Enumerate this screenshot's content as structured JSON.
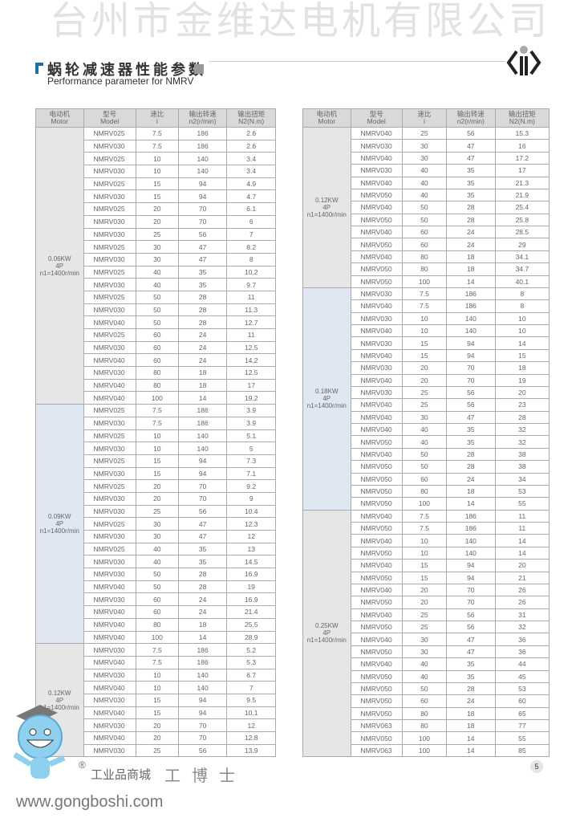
{
  "header": {
    "title_cn": "蜗轮减速器性能参数",
    "title_en": "Performance parameter for NMRV"
  },
  "columns": [
    {
      "cn": "电动机",
      "en": "Motor"
    },
    {
      "cn": "型号",
      "en": "Model"
    },
    {
      "cn": "速比",
      "en": "i"
    },
    {
      "cn": "输出转速",
      "en": "n2(r/min)"
    },
    {
      "cn": "输出扭矩",
      "en": "N2(N.m)"
    }
  ],
  "colors": {
    "gray_group": "#e6e6e6",
    "blue_group": "#dfe8f2",
    "accent": "#1d6fa5"
  },
  "tables": [
    {
      "groups": [
        {
          "motor": [
            "0.06KW",
            "4P",
            "n1=1400r/min"
          ],
          "shade": "gray",
          "rows": [
            [
              "NMRV025",
              "7.5",
              "186",
              "2.6"
            ],
            [
              "NMRV030",
              "7.5",
              "186",
              "2.6"
            ],
            [
              "NMRV025",
              "10",
              "140",
              "3.4"
            ],
            [
              "NMRV030",
              "10",
              "140",
              "3.4"
            ],
            [
              "NMRV025",
              "15",
              "94",
              "4.9"
            ],
            [
              "NMRV030",
              "15",
              "94",
              "4.7"
            ],
            [
              "NMRV025",
              "20",
              "70",
              "6.1"
            ],
            [
              "NMRV030",
              "20",
              "70",
              "6"
            ],
            [
              "NMRV030",
              "25",
              "56",
              "7"
            ],
            [
              "NMRV025",
              "30",
              "47",
              "8.2"
            ],
            [
              "NMRV030",
              "30",
              "47",
              "8"
            ],
            [
              "NMRV025",
              "40",
              "35",
              "10.2"
            ],
            [
              "NMRV030",
              "40",
              "35",
              "9.7"
            ],
            [
              "NMRV025",
              "50",
              "28",
              "11"
            ],
            [
              "NMRV030",
              "50",
              "28",
              "11.3"
            ],
            [
              "NMRV040",
              "50",
              "28",
              "12.7"
            ],
            [
              "NMRV025",
              "60",
              "24",
              "11"
            ],
            [
              "NMRV030",
              "60",
              "24",
              "12.5"
            ],
            [
              "NMRV040",
              "60",
              "24",
              "14.2"
            ],
            [
              "NMRV030",
              "80",
              "18",
              "12.5"
            ],
            [
              "NMRV040",
              "80",
              "18",
              "17"
            ],
            [
              "NMRV040",
              "100",
              "14",
              "19.2"
            ]
          ]
        },
        {
          "motor": [
            "0.09KW",
            "4P",
            "n1=1400r/min"
          ],
          "shade": "blue",
          "rows": [
            [
              "NMRV025",
              "7.5",
              "186",
              "3.9"
            ],
            [
              "NMRV030",
              "7.5",
              "186",
              "3.9"
            ],
            [
              "NMRV025",
              "10",
              "140",
              "5.1"
            ],
            [
              "NMRV030",
              "10",
              "140",
              "5"
            ],
            [
              "NMRV025",
              "15",
              "94",
              "7.3"
            ],
            [
              "NMRV030",
              "15",
              "94",
              "7.1"
            ],
            [
              "NMRV025",
              "20",
              "70",
              "9.2"
            ],
            [
              "NMRV030",
              "20",
              "70",
              "9"
            ],
            [
              "NMRV030",
              "25",
              "56",
              "10.4"
            ],
            [
              "NMRV025",
              "30",
              "47",
              "12.3"
            ],
            [
              "NMRV030",
              "30",
              "47",
              "12"
            ],
            [
              "NMRV025",
              "40",
              "35",
              "13"
            ],
            [
              "NMRV030",
              "40",
              "35",
              "14.5"
            ],
            [
              "NMRV030",
              "50",
              "28",
              "16.9"
            ],
            [
              "NMRV040",
              "50",
              "28",
              "19"
            ],
            [
              "NMRV030",
              "60",
              "24",
              "16.9"
            ],
            [
              "NMRV040",
              "60",
              "24",
              "21.4"
            ],
            [
              "NMRV040",
              "80",
              "18",
              "25.5"
            ],
            [
              "NMRV040",
              "100",
              "14",
              "28.9"
            ]
          ]
        },
        {
          "motor": [
            "0.12KW",
            "4P",
            "n1=1400r/min"
          ],
          "shade": "gray",
          "rows": [
            [
              "NMRV030",
              "7.5",
              "186",
              "5.2"
            ],
            [
              "NMRV040",
              "7.5",
              "186",
              "5.3"
            ],
            [
              "NMRV030",
              "10",
              "140",
              "6.7"
            ],
            [
              "NMRV040",
              "10",
              "140",
              "7"
            ],
            [
              "NMRV030",
              "15",
              "94",
              "9.5"
            ],
            [
              "NMRV040",
              "15",
              "94",
              "10.1"
            ],
            [
              "NMRV030",
              "20",
              "70",
              "12"
            ],
            [
              "NMRV040",
              "20",
              "70",
              "12.8"
            ],
            [
              "NMRV030",
              "25",
              "56",
              "13.9"
            ]
          ]
        }
      ]
    },
    {
      "groups": [
        {
          "motor": [
            "0.12KW",
            "4P",
            "n1=1400r/min"
          ],
          "shade": "gray",
          "rows": [
            [
              "NMRV040",
              "25",
              "56",
              "15.3"
            ],
            [
              "NMRV030",
              "30",
              "47",
              "16"
            ],
            [
              "NMRV040",
              "30",
              "47",
              "17.2"
            ],
            [
              "NMRV030",
              "40",
              "35",
              "17"
            ],
            [
              "NMRV040",
              "40",
              "35",
              "21.3"
            ],
            [
              "NMRV050",
              "40",
              "35",
              "21.9"
            ],
            [
              "NMRV040",
              "50",
              "28",
              "25.4"
            ],
            [
              "NMRV050",
              "50",
              "28",
              "25.8"
            ],
            [
              "NMRV040",
              "60",
              "24",
              "28.5"
            ],
            [
              "NMRV050",
              "60",
              "24",
              "29"
            ],
            [
              "NMRV040",
              "80",
              "18",
              "34.1"
            ],
            [
              "NMRV050",
              "80",
              "18",
              "34.7"
            ],
            [
              "NMRV050",
              "100",
              "14",
              "40.1"
            ]
          ]
        },
        {
          "motor": [
            "0.18KW",
            "4P",
            "n1=1400r/min"
          ],
          "shade": "blue",
          "rows": [
            [
              "NMRV030",
              "7.5",
              "186",
              "8"
            ],
            [
              "NMRV040",
              "7.5",
              "186",
              "8"
            ],
            [
              "NMRV030",
              "10",
              "140",
              "10"
            ],
            [
              "NMRV040",
              "10",
              "140",
              "10"
            ],
            [
              "NMRV030",
              "15",
              "94",
              "14"
            ],
            [
              "NMRV040",
              "15",
              "94",
              "15"
            ],
            [
              "NMRV030",
              "20",
              "70",
              "18"
            ],
            [
              "NMRV040",
              "20",
              "70",
              "19"
            ],
            [
              "NMRV030",
              "25",
              "56",
              "20"
            ],
            [
              "NMRV040",
              "25",
              "56",
              "23"
            ],
            [
              "NMRV040",
              "30",
              "47",
              "28"
            ],
            [
              "NMRV040",
              "40",
              "35",
              "32"
            ],
            [
              "NMRV050",
              "40",
              "35",
              "32"
            ],
            [
              "NMRV040",
              "50",
              "28",
              "38"
            ],
            [
              "NMRV050",
              "50",
              "28",
              "38"
            ],
            [
              "NMRV050",
              "60",
              "24",
              "34"
            ],
            [
              "NMRV050",
              "80",
              "18",
              "53"
            ],
            [
              "NMRV050",
              "100",
              "14",
              "55"
            ]
          ]
        },
        {
          "motor": [
            "0.25KW",
            "4P",
            "n1=1400r/min"
          ],
          "shade": "gray",
          "rows": [
            [
              "NMRV040",
              "7.5",
              "186",
              "11"
            ],
            [
              "NMRV050",
              "7.5",
              "186",
              "11"
            ],
            [
              "NMRV040",
              "10",
              "140",
              "14"
            ],
            [
              "NMRV050",
              "10",
              "140",
              "14"
            ],
            [
              "NMRV040",
              "15",
              "94",
              "20"
            ],
            [
              "NMRV050",
              "15",
              "94",
              "21"
            ],
            [
              "NMRV040",
              "20",
              "70",
              "26"
            ],
            [
              "NMRV050",
              "20",
              "70",
              "26"
            ],
            [
              "NMRV040",
              "25",
              "56",
              "31"
            ],
            [
              "NMRV050",
              "25",
              "56",
              "32"
            ],
            [
              "NMRV040",
              "30",
              "47",
              "36"
            ],
            [
              "NMRV050",
              "30",
              "47",
              "36"
            ],
            [
              "NMRV040",
              "40",
              "35",
              "44"
            ],
            [
              "NMRV050",
              "40",
              "35",
              "45"
            ],
            [
              "NMRV050",
              "50",
              "28",
              "53"
            ],
            [
              "NMRV050",
              "60",
              "24",
              "60"
            ],
            [
              "NMRV050",
              "80",
              "18",
              "65"
            ],
            [
              "NMRV063",
              "80",
              "18",
              "77"
            ],
            [
              "NMRV050",
              "100",
              "14",
              "55"
            ],
            [
              "NMRV063",
              "100",
              "14",
              "85"
            ]
          ]
        }
      ]
    }
  ],
  "watermark": "台州市金维达电机有限公司",
  "footer": {
    "brand_cn": "工博士",
    "shop": "工业品商城",
    "url": "www.gongboshi.com",
    "registered": "®",
    "page": "5"
  }
}
